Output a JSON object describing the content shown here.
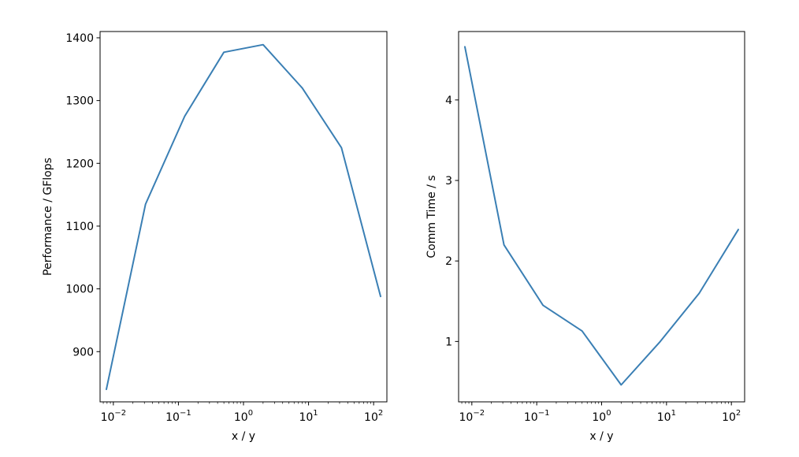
{
  "chart_data": [
    {
      "type": "line",
      "xscale": "log",
      "xlabel": "x / y",
      "ylabel": "Performance / GFlops",
      "xlim": [
        0.00625,
        160
      ],
      "ylim": [
        820,
        1410
      ],
      "xticks": [
        0.01,
        0.1,
        1,
        10,
        100
      ],
      "yticks": [
        900,
        1000,
        1100,
        1200,
        1300,
        1400
      ],
      "grid": false,
      "color": "#3a7fb4",
      "x": [
        0.0078125,
        0.03125,
        0.125,
        0.5,
        2,
        8,
        32,
        128
      ],
      "y": [
        840,
        1135,
        1275,
        1377,
        1389,
        1320,
        1225,
        988
      ]
    },
    {
      "type": "line",
      "xscale": "log",
      "xlabel": "x / y",
      "ylabel": "Comm Time / s",
      "xlim": [
        0.00625,
        160
      ],
      "ylim": [
        0.25,
        4.85
      ],
      "xticks": [
        0.01,
        0.1,
        1,
        10,
        100
      ],
      "yticks": [
        1,
        2,
        3,
        4
      ],
      "grid": false,
      "color": "#3a7fb4",
      "x": [
        0.0078125,
        0.03125,
        0.125,
        0.5,
        2,
        8,
        32,
        128
      ],
      "y": [
        4.66,
        2.2,
        1.45,
        1.13,
        0.46,
        1.0,
        1.6,
        2.39
      ]
    }
  ]
}
